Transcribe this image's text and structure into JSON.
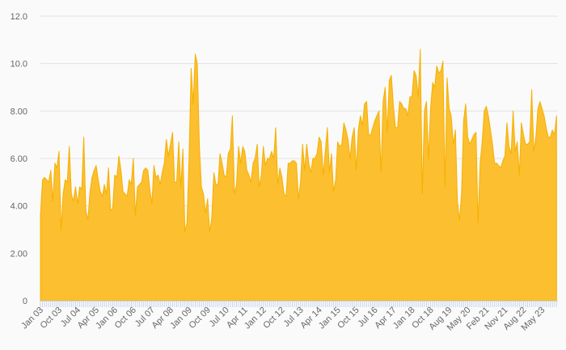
{
  "chart_data": {
    "type": "area",
    "title": "",
    "xlabel": "",
    "ylabel": "",
    "ylim": [
      0,
      12
    ],
    "grid": true,
    "legend": "none",
    "fill_color": "#fbbf2f",
    "line_color": "#f6b000",
    "y_tick_labels": [
      "0",
      "2.00",
      "4.00",
      "6.00",
      "8.00",
      "10.0",
      "12.0"
    ],
    "y_tick_values": [
      0,
      2,
      4,
      6,
      8,
      10,
      12
    ],
    "x_tick_labels": [
      "Jan 03",
      "Oct 03",
      "Jul 04",
      "Apr 05",
      "Jan 06",
      "Oct 06",
      "Jul 07",
      "Apr 08",
      "Jan 09",
      "Oct 09",
      "Jul 10",
      "Apr 11",
      "Jan 12",
      "Oct 12",
      "Jul 13",
      "Apr 14",
      "Jan 15",
      "Oct 15",
      "Jul 16",
      "Apr 17",
      "Jan 18",
      "Oct 18",
      "Aug 19",
      "May 20",
      "Feb 21",
      "Nov 21",
      "Aug 22",
      "May 23"
    ],
    "x_tick_interval_months": 9,
    "x_start": "Jan 2003",
    "frequency": "monthly",
    "values": [
      3.6,
      5.1,
      5.2,
      5.1,
      5.0,
      5.5,
      4.2,
      5.8,
      5.6,
      6.3,
      3.0,
      4.5,
      5.1,
      5.0,
      6.5,
      4.5,
      4.2,
      4.8,
      4.1,
      4.8,
      4.7,
      6.9,
      3.8,
      3.4,
      4.6,
      5.2,
      5.5,
      5.7,
      5.1,
      4.6,
      4.4,
      4.9,
      4.5,
      5.6,
      3.8,
      3.9,
      5.3,
      5.2,
      6.1,
      5.5,
      4.6,
      4.5,
      4.4,
      5.1,
      4.9,
      6.0,
      3.6,
      4.8,
      4.9,
      5.0,
      5.5,
      5.6,
      5.5,
      4.7,
      4.1,
      5.7,
      5.2,
      5.3,
      4.9,
      5.4,
      5.8,
      6.8,
      6.1,
      6.6,
      7.1,
      5.0,
      5.0,
      6.7,
      4.8,
      6.4,
      2.9,
      3.3,
      6.0,
      9.8,
      8.3,
      10.4,
      10.0,
      6.5,
      4.8,
      4.5,
      3.7,
      4.3,
      2.9,
      3.5,
      5.4,
      4.9,
      4.9,
      6.2,
      5.8,
      5.3,
      5.2,
      6.2,
      6.4,
      7.8,
      4.5,
      4.9,
      6.5,
      5.8,
      6.5,
      6.3,
      5.5,
      5.3,
      5.0,
      5.8,
      6.0,
      6.6,
      4.8,
      5.3,
      6.5,
      5.7,
      6.0,
      6.0,
      6.3,
      6.0,
      7.3,
      4.9,
      5.6,
      5.2,
      4.5,
      4.4,
      5.8,
      5.8,
      5.9,
      5.9,
      5.8,
      4.3,
      5.0,
      6.6,
      5.5,
      6.6,
      5.8,
      5.4,
      6.0,
      6.0,
      6.2,
      6.9,
      6.7,
      5.3,
      6.3,
      7.3,
      5.4,
      6.2,
      4.6,
      5.1,
      6.7,
      6.5,
      6.6,
      7.5,
      7.2,
      6.8,
      6.0,
      6.9,
      7.3,
      5.5,
      7.2,
      7.8,
      7.4,
      8.3,
      8.4,
      7.0,
      7.0,
      7.3,
      7.6,
      7.8,
      8.0,
      5.4,
      8.4,
      9.0,
      7.1,
      9.3,
      9.5,
      8.2,
      7.3,
      7.3,
      8.4,
      8.3,
      8.1,
      8.1,
      7.8,
      8.6,
      8.6,
      9.7,
      9.5,
      8.6,
      10.6,
      4.5,
      8.0,
      8.4,
      6.0,
      8.1,
      9.2,
      9.0,
      9.9,
      9.6,
      9.7,
      10.1,
      4.8,
      9.4,
      8.1,
      7.8,
      6.6,
      7.2,
      4.2,
      3.4,
      4.5,
      7.6,
      8.3,
      6.9,
      6.6,
      6.8,
      7.0,
      7.1,
      3.3,
      5.8,
      6.7,
      8.0,
      8.2,
      7.8,
      7.2,
      6.6,
      5.8,
      5.8,
      5.7,
      5.6,
      5.9,
      6.1,
      7.5,
      6.5,
      6.2,
      8.0,
      6.3,
      6.7,
      5.3,
      7.5,
      7.0,
      6.6,
      6.6,
      6.7,
      8.9,
      6.3,
      6.9,
      8.1,
      8.4,
      8.1,
      7.8,
      7.3,
      6.9,
      6.9,
      7.2,
      7.0,
      7.8
    ]
  }
}
